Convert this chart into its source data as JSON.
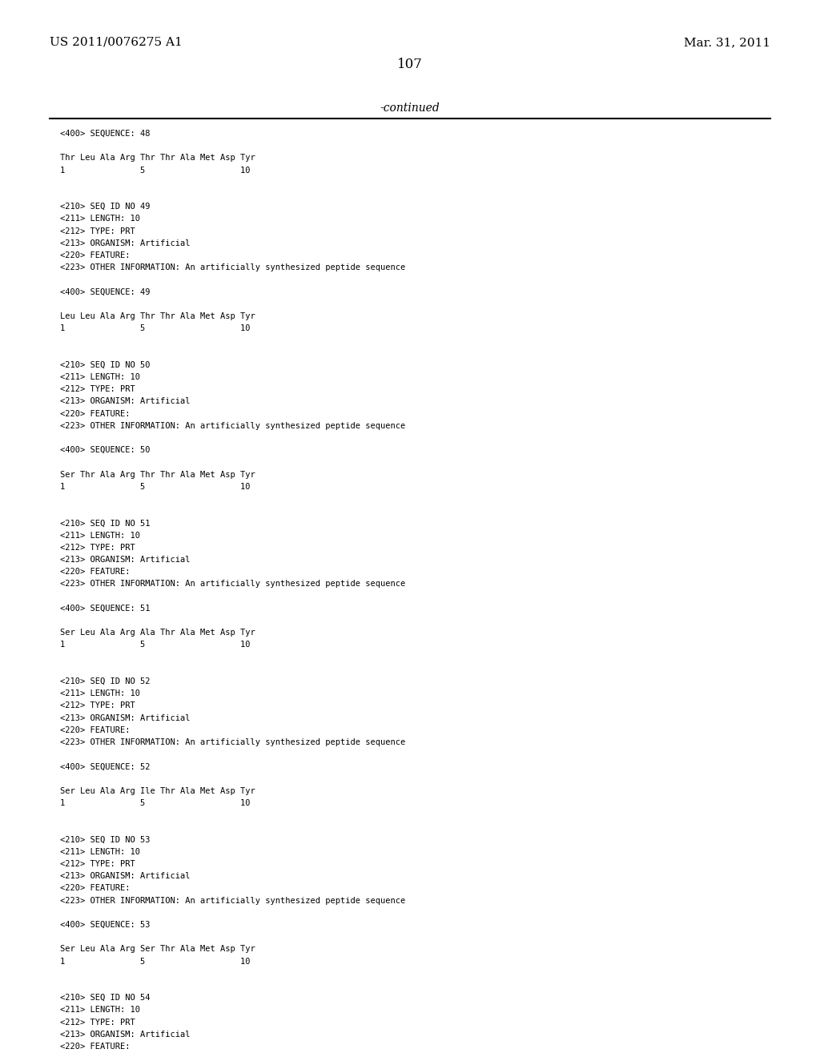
{
  "header_left": "US 2011/0076275 A1",
  "header_right": "Mar. 31, 2011",
  "page_number": "107",
  "continued_label": "-continued",
  "background_color": "#ffffff",
  "text_color": "#000000",
  "lines": [
    "<400> SEQUENCE: 48",
    "",
    "Thr Leu Ala Arg Thr Thr Ala Met Asp Tyr",
    "1               5                   10",
    "",
    "",
    "<210> SEQ ID NO 49",
    "<211> LENGTH: 10",
    "<212> TYPE: PRT",
    "<213> ORGANISM: Artificial",
    "<220> FEATURE:",
    "<223> OTHER INFORMATION: An artificially synthesized peptide sequence",
    "",
    "<400> SEQUENCE: 49",
    "",
    "Leu Leu Ala Arg Thr Thr Ala Met Asp Tyr",
    "1               5                   10",
    "",
    "",
    "<210> SEQ ID NO 50",
    "<211> LENGTH: 10",
    "<212> TYPE: PRT",
    "<213> ORGANISM: Artificial",
    "<220> FEATURE:",
    "<223> OTHER INFORMATION: An artificially synthesized peptide sequence",
    "",
    "<400> SEQUENCE: 50",
    "",
    "Ser Thr Ala Arg Thr Thr Ala Met Asp Tyr",
    "1               5                   10",
    "",
    "",
    "<210> SEQ ID NO 51",
    "<211> LENGTH: 10",
    "<212> TYPE: PRT",
    "<213> ORGANISM: Artificial",
    "<220> FEATURE:",
    "<223> OTHER INFORMATION: An artificially synthesized peptide sequence",
    "",
    "<400> SEQUENCE: 51",
    "",
    "Ser Leu Ala Arg Ala Thr Ala Met Asp Tyr",
    "1               5                   10",
    "",
    "",
    "<210> SEQ ID NO 52",
    "<211> LENGTH: 10",
    "<212> TYPE: PRT",
    "<213> ORGANISM: Artificial",
    "<220> FEATURE:",
    "<223> OTHER INFORMATION: An artificially synthesized peptide sequence",
    "",
    "<400> SEQUENCE: 52",
    "",
    "Ser Leu Ala Arg Ile Thr Ala Met Asp Tyr",
    "1               5                   10",
    "",
    "",
    "<210> SEQ ID NO 53",
    "<211> LENGTH: 10",
    "<212> TYPE: PRT",
    "<213> ORGANISM: Artificial",
    "<220> FEATURE:",
    "<223> OTHER INFORMATION: An artificially synthesized peptide sequence",
    "",
    "<400> SEQUENCE: 53",
    "",
    "Ser Leu Ala Arg Ser Thr Ala Met Asp Tyr",
    "1               5                   10",
    "",
    "",
    "<210> SEQ ID NO 54",
    "<211> LENGTH: 10",
    "<212> TYPE: PRT",
    "<213> ORGANISM: Artificial",
    "<220> FEATURE:"
  ]
}
